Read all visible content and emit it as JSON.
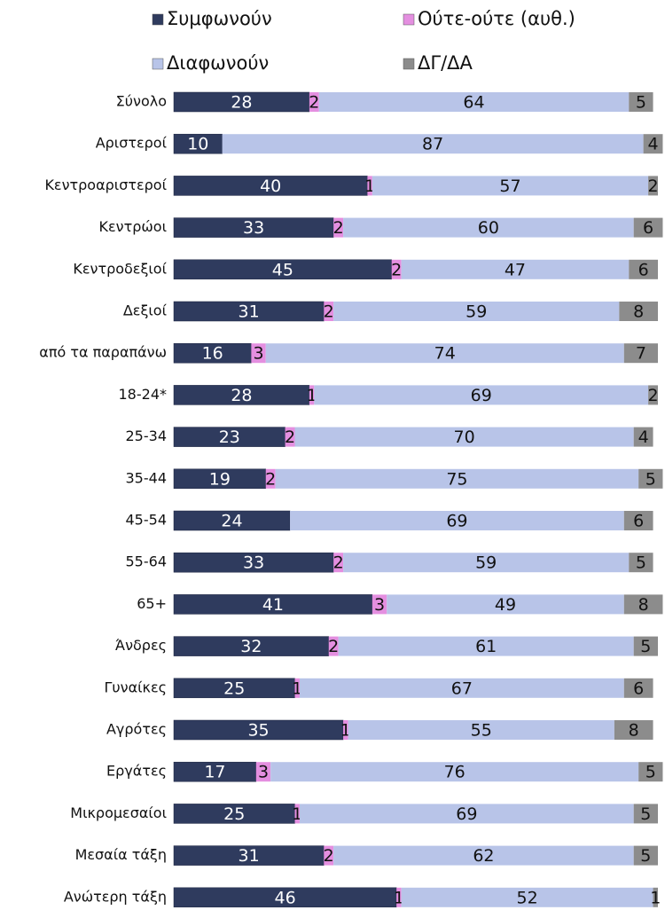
{
  "chart_data": {
    "type": "stacked-bar-horizontal",
    "categories": [
      "Σύνολο",
      "Αριστεροί",
      "Κεντροαριστεροί",
      "Κεντρώοι",
      "Κεντροδεξιοί",
      "Δεξιοί",
      "από τα παραπάνω",
      "18-24*",
      "25-34",
      "35-44",
      "45-54",
      "55-64",
      "65+",
      "Άνδρες",
      "Γυναίκες",
      "Αγρότες",
      "Εργάτες",
      "Μικρομεσαίοι",
      "Μεσαία τάξη",
      "Ανώτερη τάξη"
    ],
    "series": [
      {
        "name": "Συμφωνούν",
        "color": "#2f3b5e",
        "values": [
          28,
          10,
          40,
          33,
          45,
          31,
          16,
          28,
          23,
          19,
          24,
          33,
          41,
          32,
          25,
          35,
          17,
          25,
          31,
          46
        ]
      },
      {
        "name": "Ούτε-ούτε (αυθ.)",
        "color": "#e48fe0",
        "values": [
          2,
          null,
          1,
          2,
          2,
          2,
          3,
          1,
          2,
          2,
          null,
          2,
          3,
          2,
          1,
          1,
          3,
          1,
          2,
          1
        ]
      },
      {
        "name": "Διαφωνούν",
        "color": "#b8c4e8",
        "values": [
          64,
          87,
          57,
          60,
          47,
          59,
          74,
          69,
          70,
          75,
          69,
          59,
          49,
          61,
          67,
          55,
          76,
          69,
          62,
          52
        ]
      },
      {
        "name": "ΔΓ/ΔΑ",
        "color": "#8c8c8c",
        "values": [
          5,
          4,
          2,
          6,
          6,
          8,
          7,
          2,
          4,
          5,
          6,
          5,
          8,
          5,
          6,
          8,
          5,
          5,
          5,
          1
        ]
      }
    ],
    "xlim": [
      0,
      100
    ]
  }
}
